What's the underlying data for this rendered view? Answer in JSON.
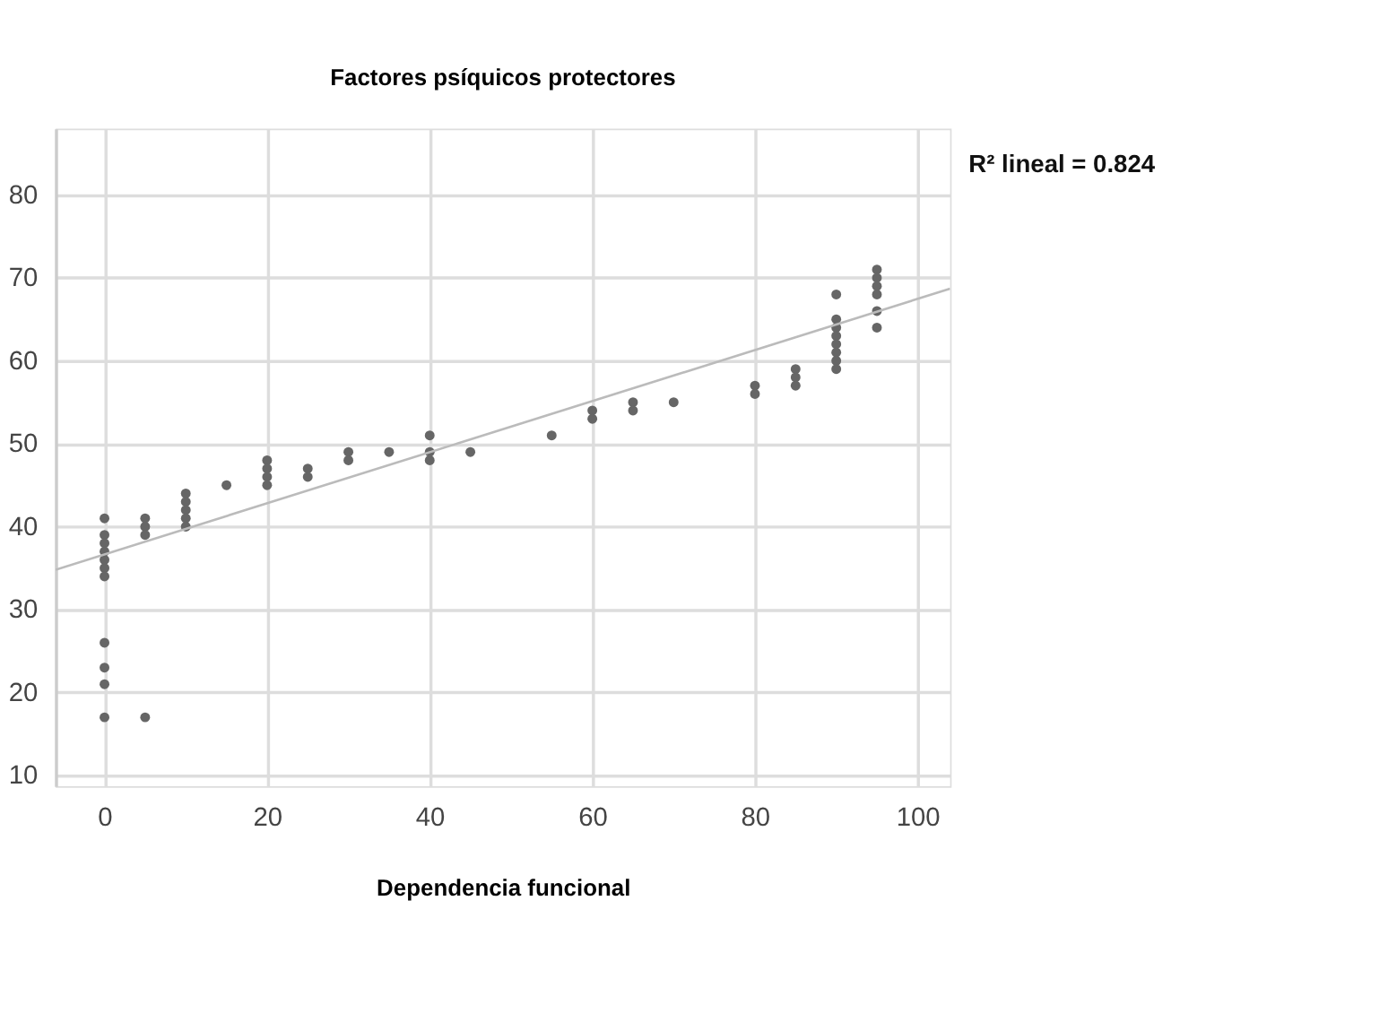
{
  "chart_data": {
    "type": "scatter",
    "title": "Factores psíquicos protectores",
    "xlabel": "Dependencia funcional",
    "annotations": [
      "R² lineal = 0.824"
    ],
    "xlim": [
      -6,
      104
    ],
    "ylim": [
      8.7,
      88
    ],
    "xticks": [
      0,
      20,
      40,
      60,
      80,
      100
    ],
    "yticks": [
      10,
      20,
      30,
      40,
      50,
      60,
      70,
      80
    ],
    "grid": true,
    "series": [
      {
        "marker": "circle",
        "color": "#666666",
        "x": [
          0,
          0,
          0,
          0,
          0,
          0,
          0,
          0,
          0,
          0,
          0,
          5,
          5,
          5,
          5,
          10,
          10,
          10,
          10,
          10,
          15,
          20,
          20,
          20,
          20,
          25,
          25,
          30,
          30,
          35,
          40,
          40,
          40,
          45,
          55,
          60,
          60,
          65,
          65,
          70,
          80,
          80,
          85,
          85,
          85,
          90,
          90,
          90,
          90,
          90,
          90,
          90,
          90,
          95,
          95,
          95,
          95,
          95,
          95
        ],
        "values": [
          41,
          39,
          38,
          37,
          36,
          35,
          34,
          26,
          23,
          21,
          17,
          41,
          40,
          39,
          17,
          44,
          43,
          42,
          41,
          40,
          45,
          48,
          47,
          46,
          45,
          47,
          46,
          49,
          48,
          49,
          51,
          49,
          48,
          49,
          51,
          54,
          53,
          55,
          54,
          55,
          57,
          56,
          59,
          58,
          57,
          68,
          65,
          64,
          63,
          62,
          61,
          60,
          59,
          71,
          70,
          69,
          68,
          66,
          64
        ]
      },
      {
        "type": "line",
        "color": "#bbbbbb",
        "x": [
          -6,
          104
        ],
        "values": [
          34.8,
          68.7
        ]
      }
    ]
  }
}
